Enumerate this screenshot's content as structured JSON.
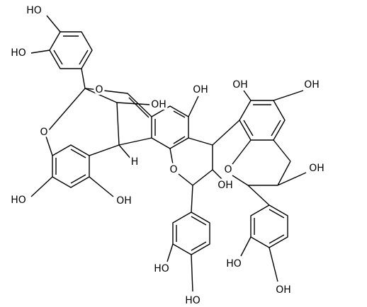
{
  "atoms": [
    "HO",
    "HO",
    "O",
    "OH",
    "O",
    "H",
    "HO",
    "OH",
    "OH",
    "O",
    "OH",
    "HO",
    "HO",
    "OH",
    "OH",
    "O",
    "OH",
    "HO",
    "OH"
  ]
}
